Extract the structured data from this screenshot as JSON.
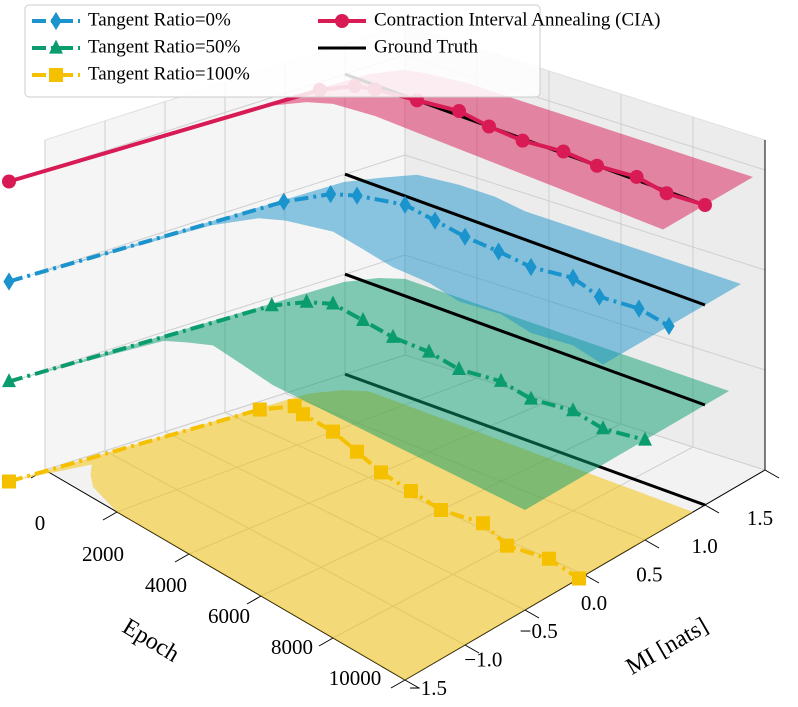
{
  "chart_data": {
    "type": "line3d",
    "xlabel": "Epoch",
    "ylabel": "MI [nats]",
    "xlim": [
      0,
      10000
    ],
    "xticks": [
      0,
      2000,
      4000,
      6000,
      8000,
      10000
    ],
    "ylim": [
      -1.5,
      1.5
    ],
    "yticks": [
      {
        "value": -1.5,
        "label": "−1.5"
      },
      {
        "value": -1.0,
        "label": "−1.0"
      },
      {
        "value": -0.5,
        "label": "−0.5"
      },
      {
        "value": 0,
        "label": "0.0"
      },
      0.5,
      {
        "value": 1.0,
        "label": "1.0"
      },
      1.5
    ],
    "grid": true,
    "legend": "upper left",
    "x": [
      0,
      300,
      600,
      1000,
      2000,
      3000,
      4000,
      5000,
      6000,
      7000,
      8000,
      9000,
      10000
    ],
    "series": [
      {
        "name": "Tangent Ratio=0%",
        "color": "#1b93cc",
        "marker": "diamond",
        "linestyle": "dashdot",
        "values": [
          -1.8,
          0.4,
          0.7,
          0.8,
          0.9,
          0.85,
          0.8,
          0.78,
          0.75,
          0.8,
          0.72,
          0.75,
          0.7
        ],
        "lower": [
          -1.8,
          -0.2,
          0.1,
          0.2,
          0.3,
          0.25,
          0.2,
          0.2,
          0.15,
          0.2,
          0.15,
          0.2,
          0.15
        ],
        "upper": [
          -1.8,
          0.9,
          1.1,
          1.3,
          1.35,
          1.35,
          1.3,
          1.3,
          1.3,
          1.3,
          1.3,
          1.3,
          1.3
        ]
      },
      {
        "name": "Tangent Ratio=50%",
        "color": "#0a9c6e",
        "marker": "triangle",
        "linestyle": "dashdot",
        "values": [
          -1.8,
          0.3,
          0.5,
          0.6,
          0.55,
          0.5,
          0.5,
          0.45,
          0.5,
          0.45,
          0.5,
          0.45,
          0.5
        ],
        "lower": [
          -1.8,
          -0.6,
          -0.5,
          -0.4,
          -0.45,
          -0.5,
          -0.5,
          -0.5,
          -0.5,
          -0.5,
          -0.5,
          -0.5,
          -0.5
        ],
        "upper": [
          -1.8,
          0.9,
          1.1,
          1.2,
          1.2,
          1.2,
          1.2,
          1.2,
          1.2,
          1.2,
          1.2,
          1.2,
          1.2
        ]
      },
      {
        "name": "Tangent Ratio=100%",
        "color": "#f5c000",
        "marker": "square",
        "linestyle": "dashdot",
        "values": [
          -1.8,
          0.2,
          0.4,
          0.35,
          0.3,
          0.2,
          0.1,
          0.05,
          0.0,
          0.05,
          -0.05,
          0.0,
          -0.05
        ],
        "lower": [
          -1.8,
          -1.2,
          -1.3,
          -1.4,
          -1.5,
          -1.5,
          -1.5,
          -1.5,
          -1.5,
          -1.5,
          -1.5,
          -1.5,
          -1.5
        ],
        "upper": [
          -1.8,
          0.6,
          0.8,
          0.9,
          0.9,
          0.9,
          0.9,
          0.9,
          0.9,
          0.9,
          0.9,
          0.9,
          0.9
        ]
      },
      {
        "name": "Contraction Interval Annealing (CIA)",
        "color": "#d81b55",
        "marker": "circle",
        "linestyle": "solid",
        "values": [
          -1.8,
          0.7,
          0.9,
          0.95,
          1.0,
          1.05,
          1.0,
          0.98,
          1.02,
          1.0,
          1.03,
          0.98,
          1.0
        ],
        "lower": [
          -1.8,
          0.3,
          0.5,
          0.6,
          0.65,
          0.65,
          0.65,
          0.65,
          0.65,
          0.65,
          0.65,
          0.65,
          0.65
        ],
        "upper": [
          -1.8,
          1.1,
          1.3,
          1.35,
          1.4,
          1.4,
          1.4,
          1.4,
          1.4,
          1.4,
          1.4,
          1.4,
          1.4
        ]
      }
    ],
    "ground_truth": {
      "name": "Ground Truth",
      "color": "#000000",
      "value": 1.0
    }
  }
}
